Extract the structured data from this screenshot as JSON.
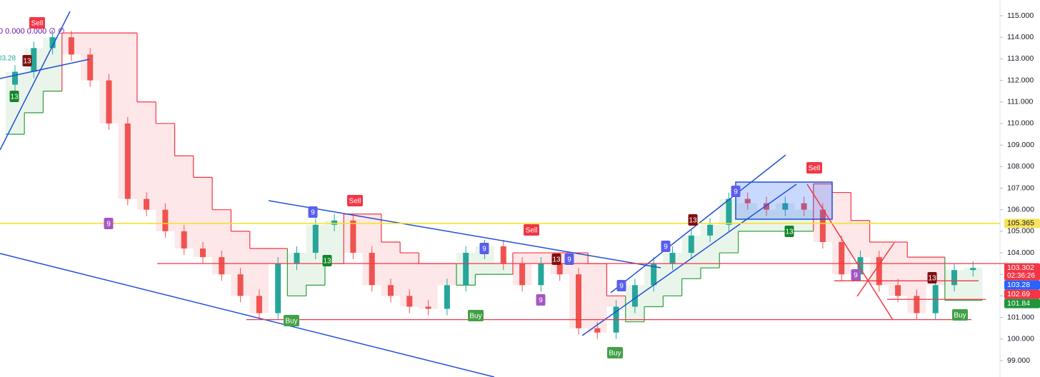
{
  "chart_data": {
    "type": "candlestick",
    "indicator_text": "0 0.000 0.000 ∅ ∅",
    "cut_label": "03.28",
    "open": [
      111.8,
      112.4,
      113.5,
      114.0,
      113.2,
      112.0,
      110.0,
      106.5,
      106.0,
      105.0,
      104.2,
      103.8,
      103.0,
      102.0,
      101.2,
      103.5,
      104.0,
      105.3,
      105.5,
      104.0,
      102.5,
      102.0,
      101.5,
      101.4,
      102.5,
      104.0,
      104.3,
      103.5,
      102.5,
      103.5,
      103.0,
      100.5,
      100.3,
      101.5,
      102.5,
      103.5,
      104.0,
      104.8,
      105.3,
      106.5,
      106.3,
      106.0,
      106.3,
      106.0,
      104.5,
      103.0,
      103.8,
      102.5,
      102.0,
      101.2,
      102.5,
      103.2
    ],
    "high": [
      112.7,
      113.8,
      114.3,
      114.3,
      113.5,
      112.3,
      110.3,
      106.8,
      106.3,
      105.3,
      104.5,
      104.1,
      103.3,
      102.3,
      103.8,
      104.3,
      105.6,
      105.8,
      105.8,
      104.3,
      102.8,
      102.3,
      101.8,
      102.8,
      104.3,
      104.6,
      104.6,
      103.8,
      103.8,
      103.8,
      103.3,
      100.8,
      101.8,
      102.8,
      103.8,
      104.3,
      105.1,
      105.6,
      106.8,
      106.8,
      106.6,
      106.6,
      106.6,
      106.3,
      104.8,
      104.1,
      104.1,
      102.8,
      102.3,
      102.8,
      103.5,
      103.6
    ],
    "low": [
      111.5,
      112.1,
      113.2,
      112.9,
      111.7,
      109.7,
      106.2,
      105.7,
      104.7,
      103.9,
      103.5,
      102.7,
      101.7,
      100.9,
      100.9,
      103.2,
      103.7,
      105.0,
      103.7,
      102.2,
      101.7,
      101.2,
      101.1,
      101.1,
      102.2,
      103.7,
      103.2,
      102.2,
      102.2,
      102.7,
      100.2,
      100.0,
      100.0,
      101.2,
      102.2,
      103.2,
      103.7,
      104.5,
      105.0,
      106.0,
      105.7,
      105.7,
      105.7,
      104.2,
      102.7,
      102.7,
      102.2,
      101.7,
      100.9,
      100.9,
      102.2,
      102.9
    ],
    "close": [
      112.4,
      113.5,
      114.0,
      113.2,
      112.0,
      110.0,
      106.5,
      106.0,
      105.0,
      104.2,
      103.8,
      103.0,
      102.0,
      101.2,
      103.5,
      104.0,
      105.3,
      105.5,
      104.0,
      102.5,
      102.0,
      101.5,
      101.4,
      102.5,
      104.0,
      104.3,
      103.5,
      102.5,
      103.5,
      103.0,
      100.5,
      100.3,
      101.5,
      102.5,
      103.5,
      104.0,
      104.8,
      105.3,
      106.5,
      106.3,
      106.0,
      106.3,
      106.0,
      104.5,
      103.0,
      103.8,
      102.5,
      102.0,
      101.2,
      102.5,
      103.2,
      103.3
    ],
    "stop": [
      109.5,
      110.5,
      111.5,
      114.2,
      114.2,
      114.2,
      114.2,
      111.0,
      110.0,
      108.5,
      107.5,
      106.0,
      105.0,
      104.2,
      104.2,
      102.0,
      102.5,
      103.5,
      105.8,
      105.8,
      104.5,
      104.0,
      103.5,
      103.5,
      102.5,
      103.0,
      103.0,
      104.0,
      104.0,
      104.0,
      104.0,
      103.5,
      102.0,
      100.8,
      101.5,
      102.0,
      102.8,
      103.3,
      104.0,
      105.0,
      105.0,
      105.0,
      105.0,
      107.2,
      106.8,
      105.5,
      104.5,
      104.5,
      103.8,
      103.8,
      101.8,
      101.8
    ],
    "up_color": "#26a69a",
    "down_color": "#ef5350",
    "levels": [
      103.5,
      100.9,
      102.7,
      101.84
    ],
    "marked_level": 105.365,
    "price_tags": [
      {
        "value": 105.365,
        "label": "105.365",
        "color": "#f7e35c",
        "text_color": "#131722"
      },
      {
        "value": 103.302,
        "label": "103.302",
        "color": "#f23645",
        "text_color": "#ffffff",
        "countdown": "02:36:26"
      },
      {
        "value": 103.28,
        "label": "103.28",
        "color": "#2962ff",
        "text_color": "#ffffff"
      },
      {
        "value": 102.69,
        "label": "102.69",
        "color": "#f23645",
        "text_color": "#ffffff"
      },
      {
        "value": 101.84,
        "label": "101.84",
        "color": "#1e9639",
        "text_color": "#ffffff"
      }
    ],
    "signals": [
      {
        "text": "Sell",
        "color": "#f23645"
      },
      {
        "text": "13",
        "color": "#801010"
      },
      {
        "text": "13",
        "color": "#13862b"
      },
      {
        "text": "9",
        "color": "#a557c4"
      },
      {
        "text": "9",
        "color": "#5a5ef0"
      },
      {
        "text": "Sell",
        "color": "#f23645"
      },
      {
        "text": "13",
        "color": "#13862b"
      },
      {
        "text": "Buy",
        "color": "#43a047"
      },
      {
        "text": "9",
        "color": "#5a5ef0"
      },
      {
        "text": "Sell",
        "color": "#f23645"
      },
      {
        "text": "Buy",
        "color": "#43a047"
      },
      {
        "text": "13",
        "color": "#801010"
      },
      {
        "text": "9",
        "color": "#5a5ef0"
      },
      {
        "text": "9",
        "color": "#a557c4"
      },
      {
        "text": "9",
        "color": "#5a5ef0"
      },
      {
        "text": "9",
        "color": "#5a5ef0"
      },
      {
        "text": "Buy",
        "color": "#43a047"
      },
      {
        "text": "9",
        "color": "#5a5ef0"
      },
      {
        "text": "13",
        "color": "#801010"
      },
      {
        "text": "Sell",
        "color": "#f23645"
      },
      {
        "text": "13",
        "color": "#13862b"
      },
      {
        "text": "9",
        "color": "#a557c4"
      },
      {
        "text": "13",
        "color": "#801010"
      },
      {
        "text": "Buy",
        "color": "#43a047"
      }
    ],
    "ylim": [
      99,
      115
    ],
    "yticks": [
      {
        "value": 99,
        "label": "99.000"
      },
      {
        "value": 100,
        "label": "100.000"
      },
      {
        "value": 101,
        "label": "101.000"
      },
      {
        "value": 102,
        "label": "102.000"
      },
      {
        "value": 103,
        "label": "103.000"
      },
      {
        "value": 104,
        "label": "104.000"
      },
      {
        "value": 105,
        "label": "105.000"
      },
      {
        "value": 106,
        "label": "106.000"
      },
      {
        "value": 107,
        "label": "107.000"
      },
      {
        "value": 108,
        "label": "108.000"
      },
      {
        "value": 109,
        "label": "109.000"
      },
      {
        "value": 110,
        "label": "110.000"
      },
      {
        "value": 111,
        "label": "111.000"
      },
      {
        "value": 112,
        "label": "112.000"
      },
      {
        "value": 113,
        "label": "113.000"
      },
      {
        "value": 114,
        "label": "114.000"
      },
      {
        "value": 115,
        "label": "115.000"
      }
    ]
  }
}
